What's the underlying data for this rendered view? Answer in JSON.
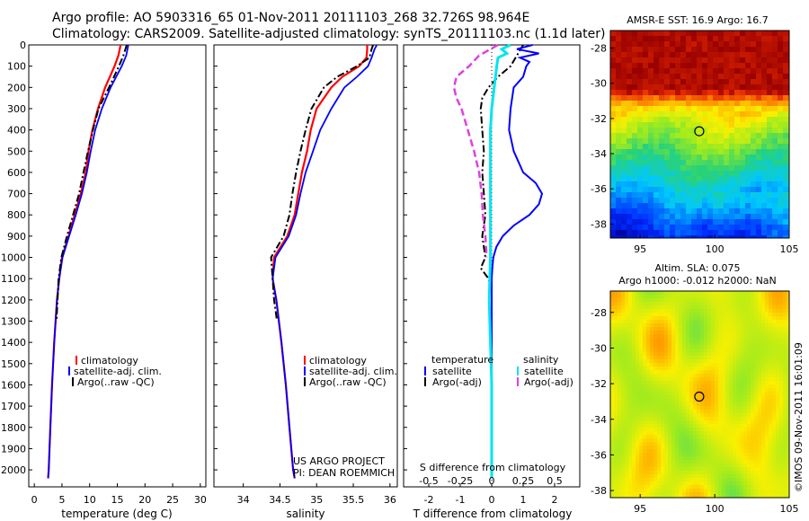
{
  "header": {
    "line1": "Argo profile: AO 5903316_65 01-Nov-2011 20111103_268 32.726S 98.964E",
    "line2": "Climatology: CARS2009. Satellite-adjusted climatology: synTS_20111103.nc (1.1d later)"
  },
  "credits": {
    "project": "US ARGO PROJECT",
    "pi": "PI: DEAN ROEMMICH",
    "imos": "©IMOS 09-Nov-2011 16:01:09"
  },
  "colors": {
    "climatology": "#ff0000",
    "satellite": "#0000ff",
    "argo": "#000000",
    "sat_sal": "#00e5ee",
    "argo_sal": "#e040e0"
  },
  "chart_data": [
    {
      "type": "line",
      "id": "temperature",
      "xlabel": "temperature (deg C)",
      "ylabel": "",
      "xlim": [
        -1,
        31
      ],
      "ylim": [
        2080,
        0
      ],
      "xticks": [
        0,
        5,
        10,
        15,
        20,
        25,
        30
      ],
      "yticks": [
        0,
        100,
        200,
        300,
        400,
        500,
        600,
        700,
        800,
        900,
        1000,
        1100,
        1200,
        1300,
        1400,
        1500,
        1600,
        1700,
        1800,
        1900,
        2000
      ],
      "legend": [
        "climatology",
        "satellite-adj. clim.",
        "Argo(..raw -QC)"
      ],
      "series": [
        {
          "name": "climatology",
          "depth": [
            0,
            50,
            100,
            200,
            300,
            400,
            500,
            600,
            700,
            800,
            900,
            1000,
            1100,
            1200,
            1400,
            1600,
            1800,
            2000,
            2040
          ],
          "values": [
            15.6,
            15.2,
            14.5,
            12.8,
            11.5,
            10.5,
            9.8,
            9.3,
            8.4,
            7.3,
            6.2,
            5.0,
            4.5,
            4.1,
            3.6,
            3.2,
            2.9,
            2.6,
            2.5
          ]
        },
        {
          "name": "satellite-adj. clim.",
          "depth": [
            0,
            50,
            100,
            200,
            300,
            400,
            500,
            600,
            700,
            800,
            900,
            1000,
            1100,
            1200,
            1400,
            1600,
            1800,
            2000,
            2040
          ],
          "values": [
            17.0,
            16.6,
            15.8,
            13.8,
            12.2,
            11.0,
            10.2,
            9.5,
            8.6,
            7.5,
            6.3,
            5.1,
            4.5,
            4.1,
            3.6,
            3.2,
            2.9,
            2.6,
            2.5
          ]
        },
        {
          "name": "Argo(..raw -QC)",
          "depth": [
            0,
            50,
            100,
            200,
            300,
            400,
            500,
            600,
            700,
            800,
            900,
            1000,
            1100,
            1200,
            1300
          ],
          "values": [
            16.7,
            16.1,
            15.3,
            13.5,
            11.6,
            10.6,
            9.7,
            8.9,
            8.1,
            7.0,
            5.9,
            4.9,
            4.4,
            4.2,
            4.0
          ]
        }
      ]
    },
    {
      "type": "line",
      "id": "salinity",
      "xlabel": "salinity",
      "xlim": [
        33.6,
        36.1
      ],
      "ylim": [
        2080,
        0
      ],
      "xticks": [
        34,
        34.5,
        35,
        35.5,
        36
      ],
      "legend": [
        "climatology",
        "satellite-adj. clim.",
        "Argo(..raw -QC)"
      ],
      "series": [
        {
          "name": "climatology",
          "depth": [
            0,
            20,
            60,
            100,
            150,
            200,
            300,
            400,
            500,
            600,
            700,
            800,
            900,
            1000,
            1100,
            1200,
            1400,
            1600,
            1800,
            2000,
            2040
          ],
          "values": [
            35.69,
            35.69,
            35.68,
            35.58,
            35.35,
            35.2,
            35.0,
            34.92,
            34.87,
            34.8,
            34.75,
            34.7,
            34.6,
            34.42,
            34.4,
            34.45,
            34.52,
            34.58,
            34.63,
            34.68,
            34.7
          ]
        },
        {
          "name": "satellite-adj. clim.",
          "depth": [
            0,
            20,
            60,
            100,
            150,
            200,
            300,
            400,
            500,
            600,
            700,
            800,
            900,
            1000,
            1100,
            1200,
            1400,
            1600,
            1800,
            2000,
            2040
          ],
          "values": [
            35.82,
            35.79,
            35.75,
            35.7,
            35.55,
            35.38,
            35.2,
            35.05,
            34.95,
            34.85,
            34.78,
            34.72,
            34.62,
            34.44,
            34.4,
            34.45,
            34.52,
            34.58,
            34.63,
            34.68,
            34.7
          ]
        },
        {
          "name": "Argo(..raw -QC)",
          "depth": [
            0,
            20,
            60,
            100,
            150,
            200,
            300,
            400,
            500,
            600,
            700,
            800,
            900,
            1000,
            1100,
            1200,
            1300
          ],
          "values": [
            35.77,
            35.75,
            35.72,
            35.55,
            35.28,
            35.1,
            34.93,
            34.85,
            34.78,
            34.72,
            34.67,
            34.63,
            34.55,
            34.38,
            34.4,
            34.42,
            34.46
          ]
        }
      ]
    },
    {
      "type": "line",
      "id": "difference",
      "xlabel": "T difference from climatology",
      "xlabel_top": "S difference from climatology",
      "xlim": [
        -2.8,
        2.8
      ],
      "ylim": [
        2080,
        0
      ],
      "xticks_T": [
        -2,
        -1,
        0,
        1,
        2
      ],
      "xticks_S": [
        "-0.5",
        "-0.25",
        "0",
        "0.25",
        "0.5"
      ],
      "legend_temperature_title": "temperature",
      "legend_salinity_title": "salinity",
      "legend": [
        "satellite",
        "Argo(-adj)",
        "satellite",
        "Argo(-adj)"
      ],
      "series": [
        {
          "name": "T satellite",
          "depth": [
            0,
            20,
            40,
            60,
            80,
            100,
            150,
            200,
            300,
            400,
            500,
            600,
            650,
            700,
            750,
            800,
            850,
            900,
            950,
            1000,
            1050,
            1100,
            1200,
            1400,
            1600,
            1800,
            2000,
            2040
          ],
          "values": [
            1.3,
            0.8,
            1.5,
            0.9,
            1.2,
            1.1,
            1.0,
            0.7,
            0.6,
            0.55,
            0.7,
            1.0,
            1.4,
            1.6,
            1.5,
            1.2,
            0.7,
            0.35,
            0.15,
            0.05,
            0.02,
            0.0,
            0.0,
            0.0,
            0.0,
            0.0,
            0.0,
            0.0
          ]
        },
        {
          "name": "T Argo(-adj)",
          "depth": [
            0,
            50,
            100,
            150,
            200,
            250,
            300,
            400,
            500,
            600,
            700,
            800,
            900,
            1000,
            1050,
            1100,
            1150
          ],
          "values": [
            1.0,
            0.8,
            0.6,
            0.2,
            -0.1,
            -0.3,
            -0.35,
            -0.3,
            -0.25,
            -0.3,
            -0.25,
            -0.2,
            -0.3,
            -0.2,
            -0.35,
            -0.1,
            0.0
          ]
        },
        {
          "name": "S satellite",
          "depth": [
            0,
            20,
            40,
            60,
            100,
            150,
            200,
            300,
            400,
            600,
            800,
            1000,
            1200,
            1400,
            1600,
            1800,
            2000,
            2040
          ],
          "values": [
            0.15,
            0.08,
            0.12,
            0.05,
            0.04,
            0.03,
            0.02,
            0.0,
            -0.01,
            -0.01,
            -0.01,
            -0.01,
            -0.02,
            -0.01,
            0.0,
            0.0,
            0.0,
            0.0
          ]
        },
        {
          "name": "S Argo(-adj)",
          "depth": [
            0,
            50,
            100,
            150,
            200,
            250,
            300,
            400,
            500,
            600,
            700,
            800,
            900,
            1000
          ],
          "values": [
            0.05,
            -0.1,
            -0.18,
            -0.28,
            -0.3,
            -0.28,
            -0.24,
            -0.19,
            -0.14,
            -0.1,
            -0.08,
            -0.07,
            -0.05,
            -0.04
          ]
        }
      ]
    },
    {
      "type": "heatmap",
      "id": "sst_map",
      "title": "AMSR-E SST: 16.9 Argo: 16.7",
      "xlim": [
        93,
        105
      ],
      "ylim": [
        -38.8,
        -27
      ],
      "xticks": [
        95,
        100,
        105
      ],
      "yticks": [
        -28,
        -30,
        -32,
        -34,
        -36,
        -38
      ],
      "marker": [
        98.964,
        -32.726
      ]
    },
    {
      "type": "heatmap",
      "id": "sla_map",
      "title": "Altim. SLA: 0.075",
      "subtitle": "Argo h1000: -0.012 h2000: NaN",
      "xlim": [
        93,
        105
      ],
      "ylim": [
        -38.4,
        -26.8
      ],
      "xticks": [
        95,
        100,
        105
      ],
      "yticks": [
        -28,
        -30,
        -32,
        -34,
        -36,
        -38
      ],
      "marker": [
        98.964,
        -32.726
      ]
    }
  ]
}
